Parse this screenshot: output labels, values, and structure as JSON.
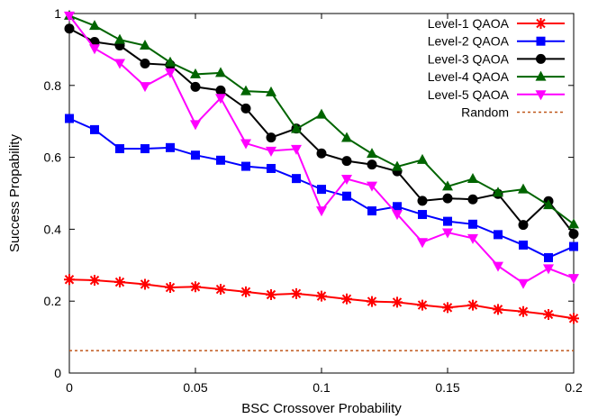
{
  "chart_data": {
    "type": "line",
    "xlabel": "BSC Crossover Probability",
    "ylabel": "Success Propability",
    "xlim": [
      0,
      0.2
    ],
    "ylim": [
      0,
      1
    ],
    "x_ticks": [
      "0",
      "0.05",
      "0.1",
      "0.15",
      "0.2"
    ],
    "y_ticks": [
      "0",
      "0.2",
      "0.4",
      "0.6",
      "0.8",
      "1"
    ],
    "grid": false,
    "legend_position": "top-right",
    "x": [
      0,
      0.01,
      0.02,
      0.03,
      0.04,
      0.05,
      0.06,
      0.07,
      0.08,
      0.09,
      0.1,
      0.11,
      0.12,
      0.13,
      0.14,
      0.15,
      0.16,
      0.17,
      0.18,
      0.19,
      0.2
    ],
    "series": [
      {
        "name": "Level-1 QAOA",
        "color": "#ff0000",
        "marker": "star",
        "values": [
          0.26,
          0.258,
          0.253,
          0.247,
          0.238,
          0.24,
          0.233,
          0.226,
          0.218,
          0.221,
          0.214,
          0.206,
          0.199,
          0.197,
          0.189,
          0.182,
          0.189,
          0.177,
          0.171,
          0.163,
          0.152
        ]
      },
      {
        "name": "Level-2 QAOA",
        "color": "#0000ff",
        "marker": "square",
        "values": [
          0.708,
          0.677,
          0.624,
          0.624,
          0.627,
          0.606,
          0.592,
          0.575,
          0.569,
          0.541,
          0.511,
          0.492,
          0.451,
          0.463,
          0.441,
          0.422,
          0.414,
          0.385,
          0.356,
          0.321,
          0.352
        ]
      },
      {
        "name": "Level-3 QAOA",
        "color": "#000000",
        "marker": "circle",
        "values": [
          0.958,
          0.921,
          0.911,
          0.861,
          0.857,
          0.796,
          0.786,
          0.736,
          0.655,
          0.68,
          0.611,
          0.59,
          0.58,
          0.561,
          0.479,
          0.486,
          0.483,
          0.498,
          0.412,
          0.478,
          0.387
        ]
      },
      {
        "name": "Level-4 QAOA",
        "color": "#006400",
        "marker": "triangle-up",
        "values": [
          0.994,
          0.966,
          0.927,
          0.911,
          0.864,
          0.831,
          0.835,
          0.784,
          0.781,
          0.679,
          0.719,
          0.654,
          0.61,
          0.574,
          0.593,
          0.519,
          0.54,
          0.502,
          0.511,
          0.467,
          0.414
        ]
      },
      {
        "name": "Level-5 QAOA",
        "color": "#ff00ff",
        "marker": "triangle-down",
        "values": [
          0.994,
          0.903,
          0.862,
          0.798,
          0.836,
          0.692,
          0.765,
          0.639,
          0.618,
          0.623,
          0.452,
          0.54,
          0.521,
          0.442,
          0.364,
          0.391,
          0.375,
          0.298,
          0.25,
          0.291,
          0.264
        ]
      },
      {
        "name": "Random",
        "color": "#c0581b",
        "marker": "none",
        "dashed": true,
        "values": [
          0.0625,
          0.0625,
          0.0625,
          0.0625,
          0.0625,
          0.0625,
          0.0625,
          0.0625,
          0.0625,
          0.0625,
          0.0625,
          0.0625,
          0.0625,
          0.0625,
          0.0625,
          0.0625,
          0.0625,
          0.0625,
          0.0625,
          0.0625,
          0.0625
        ]
      }
    ]
  }
}
